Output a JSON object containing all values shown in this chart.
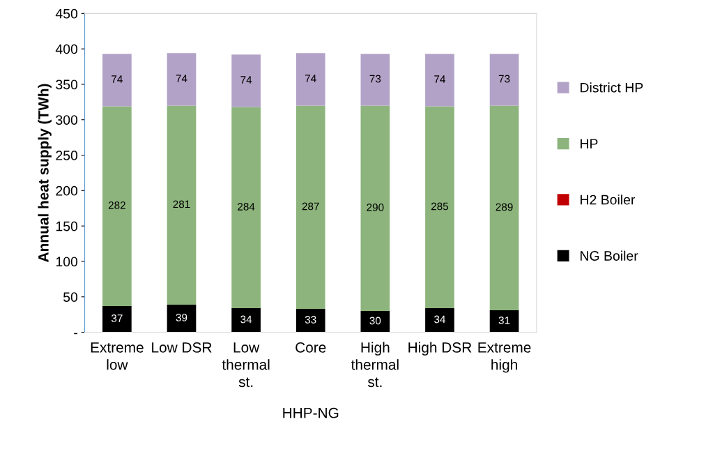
{
  "chart_data": {
    "type": "bar",
    "stacked": true,
    "ylabel": "Annual heat supply (TWh)",
    "xlabel": "HHP-NG",
    "categories": [
      "Extreme\nlow",
      "Low DSR",
      "Low\nthermal\nst.",
      "Core",
      "High\nthermal\nst.",
      "High DSR",
      "Extreme\nhigh"
    ],
    "series": [
      {
        "name": "NG Boiler",
        "color": "#000000",
        "values": [
          37,
          39,
          34,
          33,
          30,
          34,
          31
        ],
        "value_labels": [
          "37",
          "39",
          "34",
          "33",
          "30",
          "34",
          "31"
        ]
      },
      {
        "name": "H2 Boiler",
        "color": "#c00000",
        "values": [
          0,
          0,
          0,
          0,
          0,
          0,
          0
        ],
        "value_labels": [
          null,
          null,
          null,
          null,
          null,
          null,
          null
        ]
      },
      {
        "name": "HP",
        "color": "#8db47c",
        "values": [
          282,
          281,
          284,
          287,
          290,
          285,
          289
        ],
        "value_labels": [
          "282",
          "281",
          "284",
          "287",
          "290",
          "285",
          "289"
        ]
      },
      {
        "name": "District HP",
        "color": "#b3a2c7",
        "values": [
          74,
          74,
          74,
          74,
          73,
          74,
          73
        ],
        "value_labels": [
          "74",
          "74",
          "74",
          "74",
          "73",
          "74",
          "73"
        ]
      }
    ],
    "ylim": [
      0,
      450
    ],
    "yticks": [
      {
        "value": 0,
        "label": "-"
      },
      50,
      100,
      150,
      200,
      250,
      300,
      350,
      400,
      450
    ],
    "grid": false,
    "legend": "right"
  }
}
